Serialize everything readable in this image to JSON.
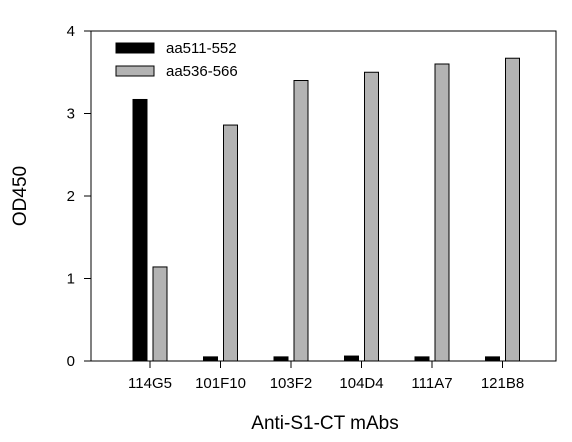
{
  "chart_data": {
    "type": "bar",
    "title": "",
    "xlabel": "Anti-S1-CT mAbs",
    "ylabel": "OD450",
    "ylim": [
      0,
      4
    ],
    "yticks": [
      "0",
      "1",
      "2",
      "3",
      "4"
    ],
    "categories": [
      "114G5",
      "101F10",
      "103F2",
      "104D4",
      "111A7",
      "121B8"
    ],
    "series": [
      {
        "name": "aa511-552",
        "color": "#000000",
        "values": [
          3.17,
          0.05,
          0.05,
          0.06,
          0.05,
          0.05
        ]
      },
      {
        "name": "aa536-566",
        "color": "#b3b3b3",
        "values": [
          1.14,
          2.86,
          3.4,
          3.5,
          3.6,
          3.67
        ]
      }
    ],
    "legend_position": "top-left",
    "grid": false
  }
}
